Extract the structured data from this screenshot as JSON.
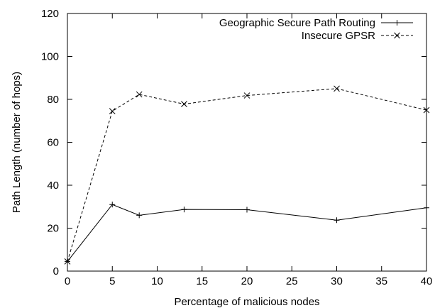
{
  "chart_data": {
    "type": "line",
    "title": "",
    "xlabel": "Percentage of malicious nodes",
    "ylabel": "Path Length (number of hops)",
    "xlim": [
      0,
      40
    ],
    "ylim": [
      0,
      120
    ],
    "xticks": [
      0,
      5,
      10,
      15,
      20,
      25,
      30,
      35,
      40
    ],
    "yticks": [
      0,
      20,
      40,
      60,
      80,
      100,
      120
    ],
    "grid": false,
    "legend_position": "top-right",
    "series": [
      {
        "name": "Geographic Secure Path Routing",
        "marker": "plus",
        "line_style": "solid",
        "color": "#000000",
        "x": [
          0,
          5,
          8,
          13,
          20,
          30,
          40
        ],
        "y": [
          4.5,
          31,
          26,
          28.7,
          28.6,
          23.7,
          29.5
        ]
      },
      {
        "name": "Insecure GPSR",
        "marker": "cross",
        "line_style": "dashed",
        "color": "#000000",
        "x": [
          0,
          5,
          8,
          13,
          20,
          30,
          40
        ],
        "y": [
          4.5,
          74.5,
          82.3,
          77.8,
          81.8,
          85,
          75
        ]
      }
    ]
  }
}
